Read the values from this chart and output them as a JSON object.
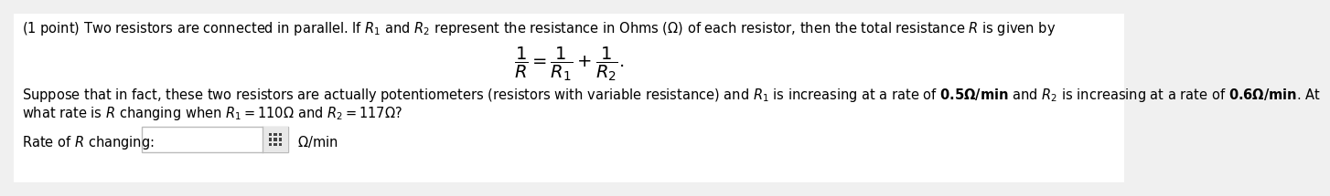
{
  "bg_color": "#f0f0f0",
  "content_bg": "#ffffff",
  "line1": "(1 point) Two resistors are connected in parallel. If $R_1$ and $R_2$ represent the resistance in Ohms ($\\Omega$) of each resistor, then the total resistance $R$ is given by",
  "formula": "$\\dfrac{1}{R} = \\dfrac{1}{R_1} + \\dfrac{1}{R_2}.$",
  "line2a": "Suppose that in fact, these two resistors are actually potentiometers (resistors with variable resistance) and $R_1$ is increasing at a rate of $\\mathbf{0.5\\Omega/min}$ and $R_2$ is increasing at a rate of $\\mathbf{0.6\\Omega/min}$. At",
  "line2b": "what rate is $R$ changing when $R_1 = 110\\Omega$ and $R_2 = 117\\Omega$?",
  "rate_label": "Rate of $R$ changing:",
  "unit": "$\\Omega$/min",
  "font_size_main": 10.5,
  "font_size_formula": 14
}
